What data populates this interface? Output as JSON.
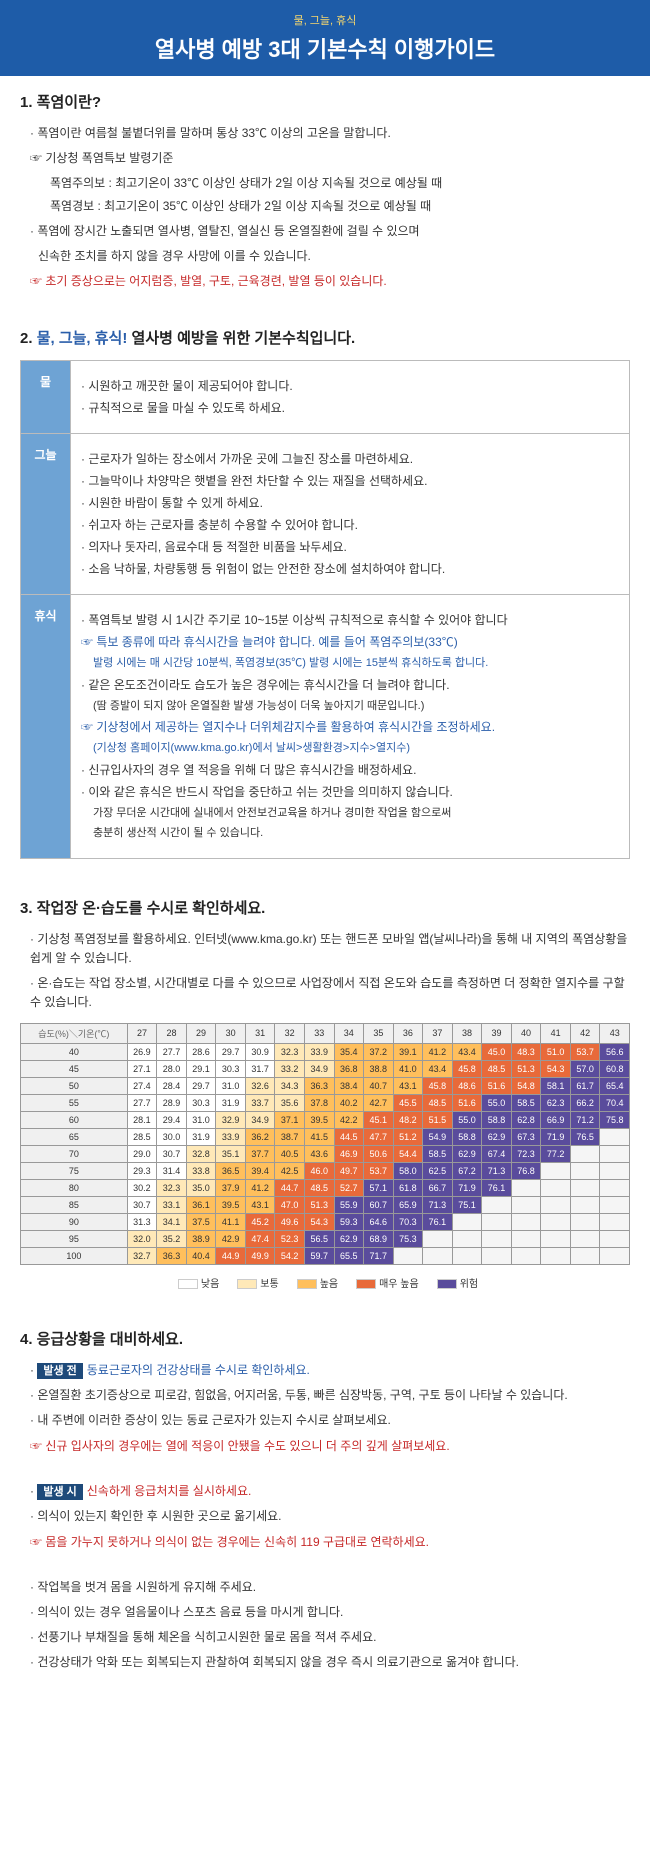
{
  "header": {
    "sub": "물, 그늘, 휴식",
    "title": "열사병 예방 3대 기본수칙 이행가이드"
  },
  "s1": {
    "title": "1. 폭염이란?",
    "l1": "폭염이란 여름철 불볕더위를 말하며 통상 33℃ 이상의 고온을 말합니다.",
    "p1": "☞ 기상청 폭염특보 발령기준",
    "p1a": "폭염주의보 : 최고기온이 33℃ 이상인 상태가 2일 이상 지속될 것으로 예상될 때",
    "p1b": "폭염경보   : 최고기온이 35℃ 이상인 상태가 2일 이상 지속될 것으로 예상될 때",
    "l2": "폭염에 장시간 노출되면 열사병, 열탈진, 열실신 등 온열질환에 걸릴 수 있으며",
    "l2b": "신속한 조치를 하지 않을 경우 사망에 이를 수 있습니다.",
    "w1": "☞ 초기 증상으로는 어지럼증, 발열, 구토, 근육경련, 발열 등이 있습니다."
  },
  "s2": {
    "title_pre": "2. ",
    "title_blue": "물, 그늘, 휴식!",
    "title_post": " 열사병 예방을 위한 기본수칙입니다.",
    "rows": [
      {
        "label": "물",
        "items": [
          {
            "t": "시원하고 깨끗한 물이 제공되어야 합니다.",
            "c": "dot"
          },
          {
            "t": "규칙적으로 물을 마실 수 있도록 하세요.",
            "c": "dot"
          }
        ]
      },
      {
        "label": "그늘",
        "items": [
          {
            "t": "근로자가 일하는 장소에서 가까운 곳에 그늘진 장소를 마련하세요.",
            "c": "dot"
          },
          {
            "t": "그늘막이나 차양막은 햇볕을 완전 차단할 수 있는 재질을 선택하세요.",
            "c": "dot"
          },
          {
            "t": "시원한 바람이 통할 수 있게 하세요.",
            "c": "dot"
          },
          {
            "t": "쉬고자 하는 근로자를 충분히 수용할 수 있어야 합니다.",
            "c": "dot"
          },
          {
            "t": "의자나 돗자리, 음료수대 등 적절한 비품을 놔두세요.",
            "c": "dot"
          },
          {
            "t": "소음 낙하물, 차량통행 등 위험이 없는 안전한 장소에 설치하여야 합니다.",
            "c": "dot"
          }
        ]
      },
      {
        "label": "휴식",
        "items": [
          {
            "t": "폭염특보 발령 시 1시간 주기로 10~15분 이상씩 규칙적으로 휴식할 수 있어야 합니다",
            "c": "dot"
          },
          {
            "t": "☞ 특보 종류에 따라 휴식시간을 늘려야 합니다. 예를 들어 폭염주의보(33℃)",
            "c": "blue"
          },
          {
            "t": "발령 시에는 매 시간당 10분씩, 폭염경보(35℃) 발령 시에는 15분씩 휴식하도록 합니다.",
            "c": "blue sub"
          },
          {
            "t": "같은 온도조건이라도 습도가 높은 경우에는 휴식시간을 더 늘려야 합니다.",
            "c": "dot"
          },
          {
            "t": "(땀 증발이 되지 않아 온열질환 발생 가능성이 더욱 높아지기 때문입니다.)",
            "c": "sub"
          },
          {
            "t": "☞ 기상청에서 제공하는 열지수나 더위체감지수를 활용하여 휴식시간을 조정하세요.",
            "c": "blue"
          },
          {
            "t": "(기상청 홈페이지(www.kma.go.kr)에서 날씨>생활환경>지수>열지수)",
            "c": "blue sub"
          },
          {
            "t": "신규입사자의 경우 열 적응을 위해 더 많은 휴식시간을 배정하세요.",
            "c": "dot"
          },
          {
            "t": "이와 같은 휴식은 반드시 작업을 중단하고 쉬는 것만을 의미하지 않습니다.",
            "c": "dot"
          },
          {
            "t": "가장 무더운 시간대에 실내에서 안전보건교육을 하거나 경미한 작업을 함으로써",
            "c": "sub"
          },
          {
            "t": "충분히 생산적 시간이 될 수 있습니다.",
            "c": "sub"
          }
        ]
      }
    ]
  },
  "s3": {
    "title": "3. 작업장 온·습도를 수시로 확인하세요.",
    "l1": "기상청 폭염정보를 활용하세요. 인터넷(www.kma.go.kr) 또는 핸드폰 모바일 앱(날씨나라)을 통해 내 지역의 폭염상황을 쉽게 알 수 있습니다.",
    "l2": "온·습도는 작업 장소별, 시간대별로 다를 수 있으므로 사업장에서 직접 온도와 습도를 측정하면 더 정확한 열지수를 구할 수 있습니다.",
    "corner": "기온(℃)",
    "rowh": "습도(%)",
    "temps": [
      "27",
      "28",
      "29",
      "30",
      "31",
      "32",
      "33",
      "34",
      "35",
      "36",
      "37",
      "38",
      "39",
      "40",
      "41",
      "42",
      "43"
    ],
    "hums": [
      "40",
      "45",
      "50",
      "55",
      "60",
      "65",
      "70",
      "75",
      "80",
      "85",
      "90",
      "95",
      "100"
    ],
    "grid": [
      [
        "26.9",
        "27.7",
        "28.6",
        "29.7",
        "30.9",
        "32.3",
        "33.9",
        "35.4",
        "37.2",
        "39.1",
        "41.2",
        "43.4",
        "45.0",
        "48.3",
        "51.0",
        "53.7",
        "56.6"
      ],
      [
        "27.1",
        "28.0",
        "29.1",
        "30.3",
        "31.7",
        "33.2",
        "34.9",
        "36.8",
        "38.8",
        "41.0",
        "43.4",
        "45.8",
        "48.5",
        "51.3",
        "54.3",
        "57.0",
        "60.8"
      ],
      [
        "27.4",
        "28.4",
        "29.7",
        "31.0",
        "32.6",
        "34.3",
        "36.3",
        "38.4",
        "40.7",
        "43.1",
        "45.8",
        "48.6",
        "51.6",
        "54.8",
        "58.1",
        "61.7",
        "65.4"
      ],
      [
        "27.7",
        "28.9",
        "30.3",
        "31.9",
        "33.7",
        "35.6",
        "37.8",
        "40.2",
        "42.7",
        "45.5",
        "48.5",
        "51.6",
        "55.0",
        "58.5",
        "62.3",
        "66.2",
        "70.4"
      ],
      [
        "28.1",
        "29.4",
        "31.0",
        "32.9",
        "34.9",
        "37.1",
        "39.5",
        "42.2",
        "45.1",
        "48.2",
        "51.5",
        "55.0",
        "58.8",
        "62.8",
        "66.9",
        "71.2",
        "75.8"
      ],
      [
        "28.5",
        "30.0",
        "31.9",
        "33.9",
        "36.2",
        "38.7",
        "41.5",
        "44.5",
        "47.7",
        "51.2",
        "54.9",
        "58.8",
        "62.9",
        "67.3",
        "71.9",
        "76.5",
        ""
      ],
      [
        "29.0",
        "30.7",
        "32.8",
        "35.1",
        "37.7",
        "40.5",
        "43.6",
        "46.9",
        "50.6",
        "54.4",
        "58.5",
        "62.9",
        "67.4",
        "72.3",
        "77.2",
        "",
        ""
      ],
      [
        "29.3",
        "31.4",
        "33.8",
        "36.5",
        "39.4",
        "42.5",
        "46.0",
        "49.7",
        "53.7",
        "58.0",
        "62.5",
        "67.2",
        "71.3",
        "76.8",
        "",
        "",
        ""
      ],
      [
        "30.2",
        "32.3",
        "35.0",
        "37.9",
        "41.2",
        "44.7",
        "48.5",
        "52.7",
        "57.1",
        "61.8",
        "66.7",
        "71.9",
        "76.1",
        "",
        "",
        "",
        ""
      ],
      [
        "30.7",
        "33.1",
        "36.1",
        "39.5",
        "43.1",
        "47.0",
        "51.3",
        "55.9",
        "60.7",
        "65.9",
        "71.3",
        "75.1",
        "",
        "",
        "",
        "",
        ""
      ],
      [
        "31.3",
        "34.1",
        "37.5",
        "41.1",
        "45.2",
        "49.6",
        "54.3",
        "59.3",
        "64.6",
        "70.3",
        "76.1",
        "",
        "",
        "",
        "",
        "",
        ""
      ],
      [
        "32.0",
        "35.2",
        "38.9",
        "42.9",
        "47.4",
        "52.3",
        "56.5",
        "62.9",
        "68.9",
        "75.3",
        "",
        "",
        "",
        "",
        "",
        "",
        ""
      ],
      [
        "32.7",
        "36.3",
        "40.4",
        "44.9",
        "49.9",
        "54.2",
        "59.7",
        "65.5",
        "71.7",
        "",
        "",
        "",
        "",
        "",
        "",
        "",
        ""
      ]
    ],
    "colors": {
      "low": "#ffffff",
      "nor": "#ffe9b8",
      "high": "#ffbf5c",
      "very": "#e86a3a",
      "dang": "#5a4c9c"
    },
    "levels": [
      [
        0,
        0,
        0,
        0,
        0,
        1,
        1,
        2,
        2,
        2,
        2,
        2,
        3,
        3,
        3,
        3,
        4
      ],
      [
        0,
        0,
        0,
        0,
        0,
        1,
        1,
        2,
        2,
        2,
        2,
        3,
        3,
        3,
        3,
        4,
        4
      ],
      [
        0,
        0,
        0,
        0,
        1,
        1,
        2,
        2,
        2,
        2,
        3,
        3,
        3,
        3,
        4,
        4,
        4
      ],
      [
        0,
        0,
        0,
        0,
        1,
        1,
        2,
        2,
        2,
        3,
        3,
        3,
        4,
        4,
        4,
        4,
        4
      ],
      [
        0,
        0,
        0,
        1,
        1,
        2,
        2,
        2,
        3,
        3,
        3,
        4,
        4,
        4,
        4,
        4,
        4
      ],
      [
        0,
        0,
        0,
        1,
        2,
        2,
        2,
        3,
        3,
        3,
        4,
        4,
        4,
        4,
        4,
        4,
        -1
      ],
      [
        0,
        0,
        1,
        1,
        2,
        2,
        2,
        3,
        3,
        3,
        4,
        4,
        4,
        4,
        4,
        -1,
        -1
      ],
      [
        0,
        0,
        1,
        2,
        2,
        2,
        3,
        3,
        3,
        4,
        4,
        4,
        4,
        4,
        -1,
        -1,
        -1
      ],
      [
        0,
        1,
        1,
        2,
        2,
        3,
        3,
        3,
        4,
        4,
        4,
        4,
        4,
        -1,
        -1,
        -1,
        -1
      ],
      [
        0,
        1,
        2,
        2,
        2,
        3,
        3,
        4,
        4,
        4,
        4,
        4,
        -1,
        -1,
        -1,
        -1,
        -1
      ],
      [
        0,
        1,
        2,
        2,
        3,
        3,
        3,
        4,
        4,
        4,
        4,
        -1,
        -1,
        -1,
        -1,
        -1,
        -1
      ],
      [
        1,
        1,
        2,
        2,
        3,
        3,
        4,
        4,
        4,
        4,
        -1,
        -1,
        -1,
        -1,
        -1,
        -1,
        -1
      ],
      [
        1,
        2,
        2,
        3,
        3,
        3,
        4,
        4,
        4,
        -1,
        -1,
        -1,
        -1,
        -1,
        -1,
        -1,
        -1
      ]
    ],
    "legend": [
      {
        "c": "#ffffff",
        "t": "낮음"
      },
      {
        "c": "#ffe9b8",
        "t": "보통"
      },
      {
        "c": "#ffbf5c",
        "t": "높음"
      },
      {
        "c": "#e86a3a",
        "t": "매우 높음"
      },
      {
        "c": "#5a4c9c",
        "t": "위험"
      }
    ]
  },
  "s4": {
    "title": "4. 응급상황을 대비하세요.",
    "badge1": "발생 전",
    "b1t": "동료근로자의 건강상태를 수시로 확인하세요.",
    "l1": "온열질환 초기증상으로 피로감, 힘없음, 어지러움, 두통, 빠른 심장박동, 구역, 구토 등이 나타날 수 있습니다.",
    "l2": "내 주변에 이러한 증상이 있는 동료 근로자가 있는지 수시로 살펴보세요.",
    "w1": "☞ 신규 입사자의 경우에는 열에 적응이 안됐을 수도 있으니 더 주의 깊게 살펴보세요.",
    "badge2": "발생 시",
    "b2t": "신속하게 응급처치를 실시하세요.",
    "l3": "의식이 있는지 확인한 후 시원한 곳으로 옮기세요.",
    "w2": "☞ 몸을 가누지 못하거나 의식이 없는 경우에는 신속히 119 구급대로 연락하세요.",
    "l4": "작업복을 벗겨 몸을 시원하게 유지해 주세요.",
    "l5": "의식이 있는 경우 얼음물이나 스포츠 음료 등을 마시게 합니다.",
    "l6": "선풍기나 부채질을 통해 체온을 식히고시원한 물로 몸을 적셔 주세요.",
    "l7": "건강상태가 악화 또는 회복되는지 관찰하여 회복되지 않을 경우 즉시 의료기관으로 옮겨야 합니다."
  }
}
